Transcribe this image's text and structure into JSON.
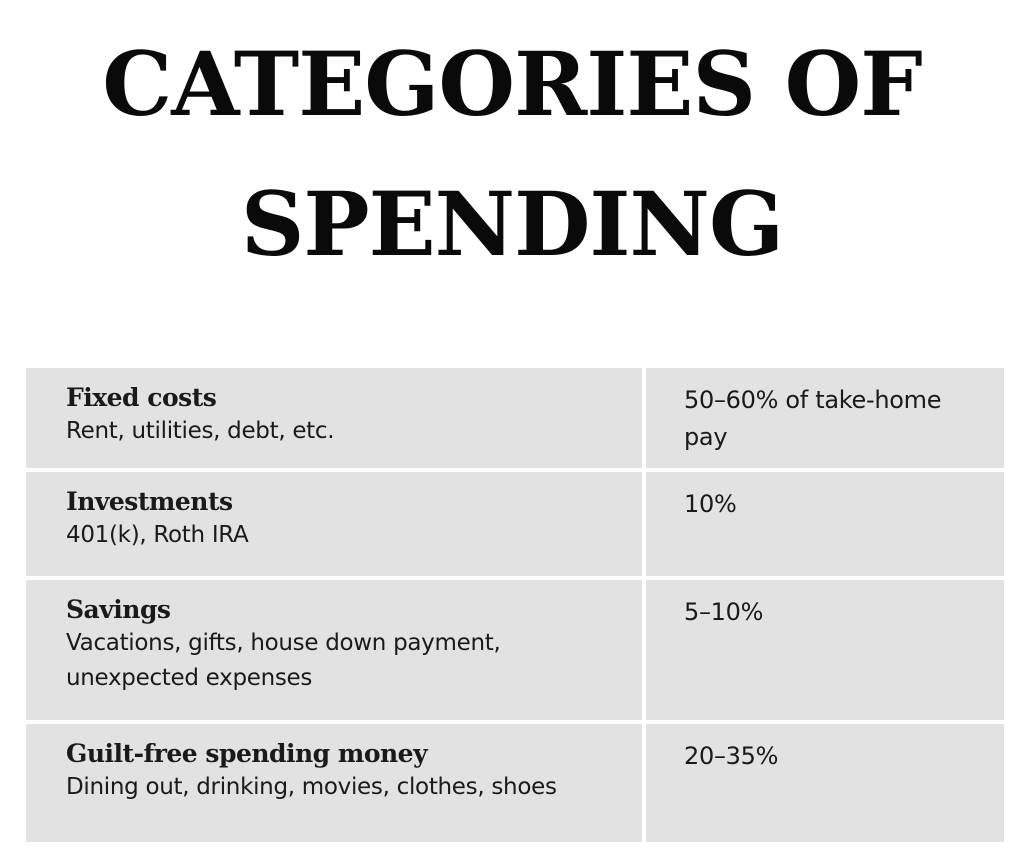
{
  "title": {
    "line1": "CATEGORIES OF",
    "line2": "SPENDING"
  },
  "table": {
    "rows": [
      {
        "name": "Fixed costs",
        "description": [
          "Rent, utilities, debt, etc."
        ],
        "percentage": [
          "50–60% of take-home",
          "pay"
        ]
      },
      {
        "name": "Investments",
        "description": [
          "401(k), Roth IRA"
        ],
        "percentage": [
          "10%"
        ]
      },
      {
        "name": "Savings",
        "description": [
          "Vacations, gifts, house down payment,",
          "unexpected expenses"
        ],
        "percentage": [
          "5–10%"
        ]
      },
      {
        "name": "Guilt-free spending money",
        "description": [
          "Dining out, drinking, movies, clothes, shoes"
        ],
        "percentage": [
          "20–35%"
        ]
      }
    ]
  },
  "colors": {
    "cell_background": "#e2e2e2",
    "text": "#1a1a1a"
  }
}
